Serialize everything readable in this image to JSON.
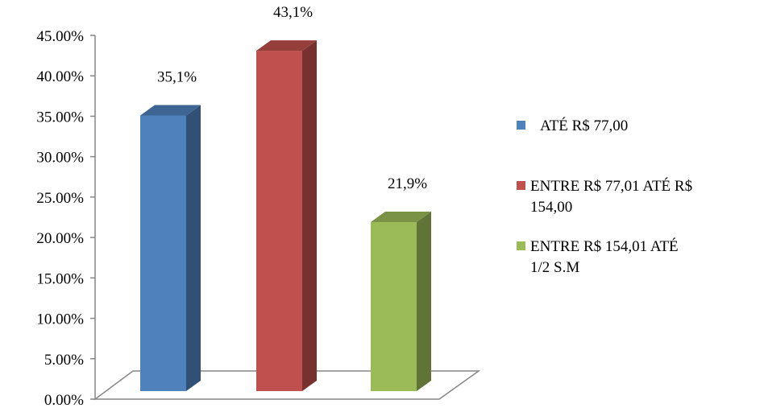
{
  "chart_data": {
    "type": "bar",
    "categories": [
      "ATÉ R$ 77,00",
      "ENTRE R$ 77,01 ATÉ R$ 154,00",
      "ENTRE R$ 154,01 ATÉ 1/2 S.M"
    ],
    "series": [
      {
        "values": [
          35.1,
          43.1,
          21.9
        ],
        "data_labels": [
          "35,1%",
          "43,1%",
          "21,9%"
        ],
        "colors": [
          "#4F81BD",
          "#C0504D",
          "#9BBB59"
        ]
      }
    ],
    "legend": {
      "placement": "right",
      "entries": [
        {
          "lines": [
            "ATÉ R$ 77,00"
          ],
          "color": "#4F81BD"
        },
        {
          "lines": [
            "ENTRE R$ 77,01 ATÉ R$",
            "154,00"
          ],
          "color": "#C0504D"
        },
        {
          "lines": [
            "ENTRE R$ 154,01 ATÉ",
            "1/2 S.M"
          ],
          "color": "#9BBB59"
        }
      ]
    },
    "yticks": [
      "0.00%",
      "5.00%",
      "10.00%",
      "15.00%",
      "20.00%",
      "25.00%",
      "30.00%",
      "35.00%",
      "40.00%",
      "45.00%"
    ],
    "ylim": [
      0,
      45
    ],
    "grid": false,
    "style": "3d-column"
  }
}
